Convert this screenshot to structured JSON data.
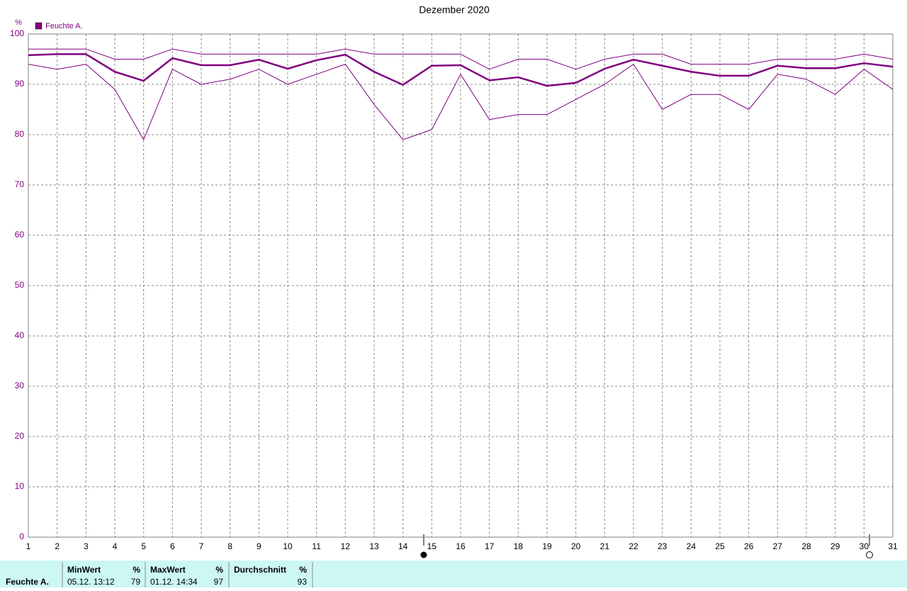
{
  "chart_data": {
    "type": "line",
    "title": "Dezember 2020",
    "y_label": "%",
    "x": [
      1,
      2,
      3,
      4,
      5,
      6,
      7,
      8,
      9,
      10,
      11,
      12,
      13,
      14,
      15,
      16,
      17,
      18,
      19,
      20,
      21,
      22,
      23,
      24,
      25,
      26,
      27,
      28,
      29,
      30,
      31
    ],
    "xlim": [
      1,
      31
    ],
    "xticks": [
      1,
      2,
      3,
      4,
      5,
      6,
      7,
      8,
      9,
      10,
      11,
      12,
      13,
      14,
      15,
      16,
      17,
      18,
      19,
      20,
      21,
      22,
      23,
      24,
      25,
      26,
      27,
      28,
      29,
      30,
      31
    ],
    "ylim": [
      0,
      100
    ],
    "yticks": [
      0,
      10,
      20,
      30,
      40,
      50,
      60,
      70,
      80,
      90,
      100
    ],
    "grid": true,
    "legend": "top-left",
    "series": [
      {
        "color": "#800080",
        "width": 1,
        "values": [
          97,
          97,
          97,
          95,
          95,
          97,
          96,
          96,
          96,
          96,
          96,
          97,
          96,
          96,
          96,
          96,
          93,
          95,
          95,
          93,
          95,
          96,
          96,
          94,
          94,
          94,
          95,
          95,
          95,
          96,
          95
        ]
      },
      {
        "name": "Feuchte A.",
        "color": "#800080",
        "width": 2.5,
        "values": [
          95.8,
          96,
          96,
          92.5,
          90.7,
          95.2,
          93.8,
          93.8,
          94.9,
          93.1,
          94.8,
          95.9,
          92.5,
          89.9,
          93.7,
          93.8,
          90.8,
          91.4,
          89.7,
          90.3,
          93.1,
          94.9,
          93.7,
          92.5,
          91.7,
          91.7,
          93.7,
          93.2,
          93.2,
          94.2,
          93.5
        ]
      },
      {
        "color": "#800080",
        "width": 1,
        "values": [
          94,
          93,
          94,
          89,
          79,
          93,
          90,
          91,
          93,
          90,
          92,
          94,
          86,
          79,
          81,
          92,
          83,
          84,
          84,
          87,
          90,
          94,
          85,
          88,
          88,
          85,
          92,
          91,
          88,
          93,
          89
        ]
      }
    ],
    "stats_table": {
      "row_label": "Feuchte A.",
      "min": {
        "header": "MinWert",
        "unit": "%",
        "time": "05.12.  13:12",
        "value": 79
      },
      "max": {
        "header": "MaxWert",
        "unit": "%",
        "time": "01.12.  14:34",
        "value": 97
      },
      "avg": {
        "header": "Durchschnitt",
        "unit": "%",
        "value": 93
      }
    }
  }
}
